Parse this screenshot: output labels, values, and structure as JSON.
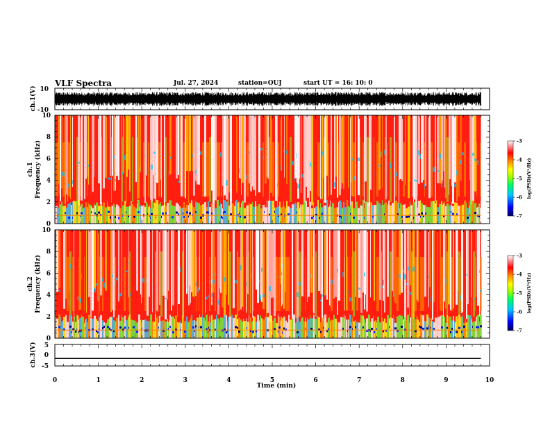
{
  "header": {
    "title": "VLF Spectra",
    "date": "Jul. 27, 2024",
    "station": "station=OUJ",
    "start_ut": "start UT =  16: 10: 0"
  },
  "chart_data": [
    {
      "type": "line",
      "panel": "ch1-waveform",
      "ylabel": "ch.1(V)",
      "ylim": [
        -10,
        10
      ],
      "yticks": [
        10,
        -10
      ],
      "description_values": "noisy waveform filling roughly -6 to 6 V across 0-9.8 min"
    },
    {
      "type": "heatmap",
      "panel": "ch1-spectrogram",
      "ylabel": "ch.1 Frequency (kHz)",
      "ylim": [
        0,
        10
      ],
      "yticks": [
        0,
        2,
        4,
        6,
        8,
        10
      ],
      "xlim": [
        0,
        9.8
      ],
      "colorbar": {
        "label": "log(PSD)(V²/Hz)",
        "range": [
          -7,
          -3
        ],
        "ticks": [
          -3,
          -4,
          -5,
          -6,
          -7
        ]
      }
    },
    {
      "type": "heatmap",
      "panel": "ch2-spectrogram",
      "ylabel": "ch.2 Frequency (kHz)",
      "ylim": [
        0,
        10
      ],
      "yticks": [
        0,
        2,
        4,
        6,
        8,
        10
      ],
      "xlim": [
        0,
        9.8
      ],
      "colorbar": {
        "label": "log(PSD)(V²/Hz)",
        "range": [
          -7,
          -3
        ],
        "ticks": [
          -3,
          -4,
          -5,
          -6,
          -7
        ]
      }
    },
    {
      "type": "line",
      "panel": "ch3-level",
      "ylabel": "ch.3(V)",
      "ylim": [
        -5,
        5
      ],
      "yticks": [
        5,
        0,
        -5
      ],
      "series": [
        {
          "x": [
            0,
            9.8
          ],
          "y": [
            -1.5,
            -1.5
          ]
        }
      ]
    }
  ],
  "axes": {
    "xlabel": "Time (min)",
    "xlim": [
      0,
      10
    ],
    "xticks": [
      "0",
      "1",
      "2",
      "3",
      "4",
      "5",
      "6",
      "7",
      "8",
      "9",
      "10"
    ]
  },
  "colors": {
    "colormap": [
      "#000080",
      "#0000ff",
      "#00c0ff",
      "#00ff80",
      "#80ff00",
      "#ffff00",
      "#ff8000",
      "#ff0000",
      "#ffffff"
    ]
  }
}
